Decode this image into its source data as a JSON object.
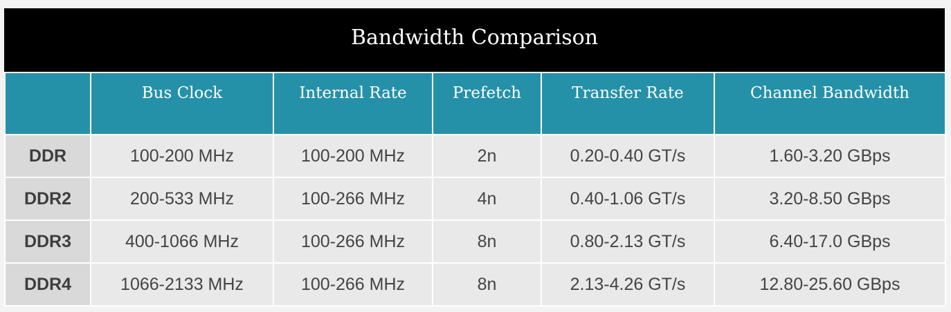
{
  "title": "Bandwidth Comparison",
  "columns": [
    "",
    "Bus Clock",
    "Internal Rate",
    "Prefetch",
    "Transfer Rate",
    "Channel Bandwidth"
  ],
  "rows": [
    [
      "DDR",
      "100-200 MHz",
      "100-200 MHz",
      "2n",
      "0.20-0.40 GT/s",
      "1.60-3.20 GBps"
    ],
    [
      "DDR2",
      "200-533 MHz",
      "100-266 MHz",
      "4n",
      "0.40-1.06 GT/s",
      "3.20-8.50 GBps"
    ],
    [
      "DDR3",
      "400-1066 MHz",
      "100-266 MHz",
      "8n",
      "0.80-2.13 GT/s",
      "6.40-17.0 GBps"
    ],
    [
      "DDR4",
      "1066-2133 MHz",
      "100-266 MHz",
      "8n",
      "2.13-4.26 GT/s",
      "12.80-25.60 GBps"
    ]
  ],
  "colors": {
    "title_bg": "#000000",
    "header_bg": "#2591a8",
    "row_bg": "#e9e9e9",
    "row_head_bg": "#d9d9d9"
  }
}
